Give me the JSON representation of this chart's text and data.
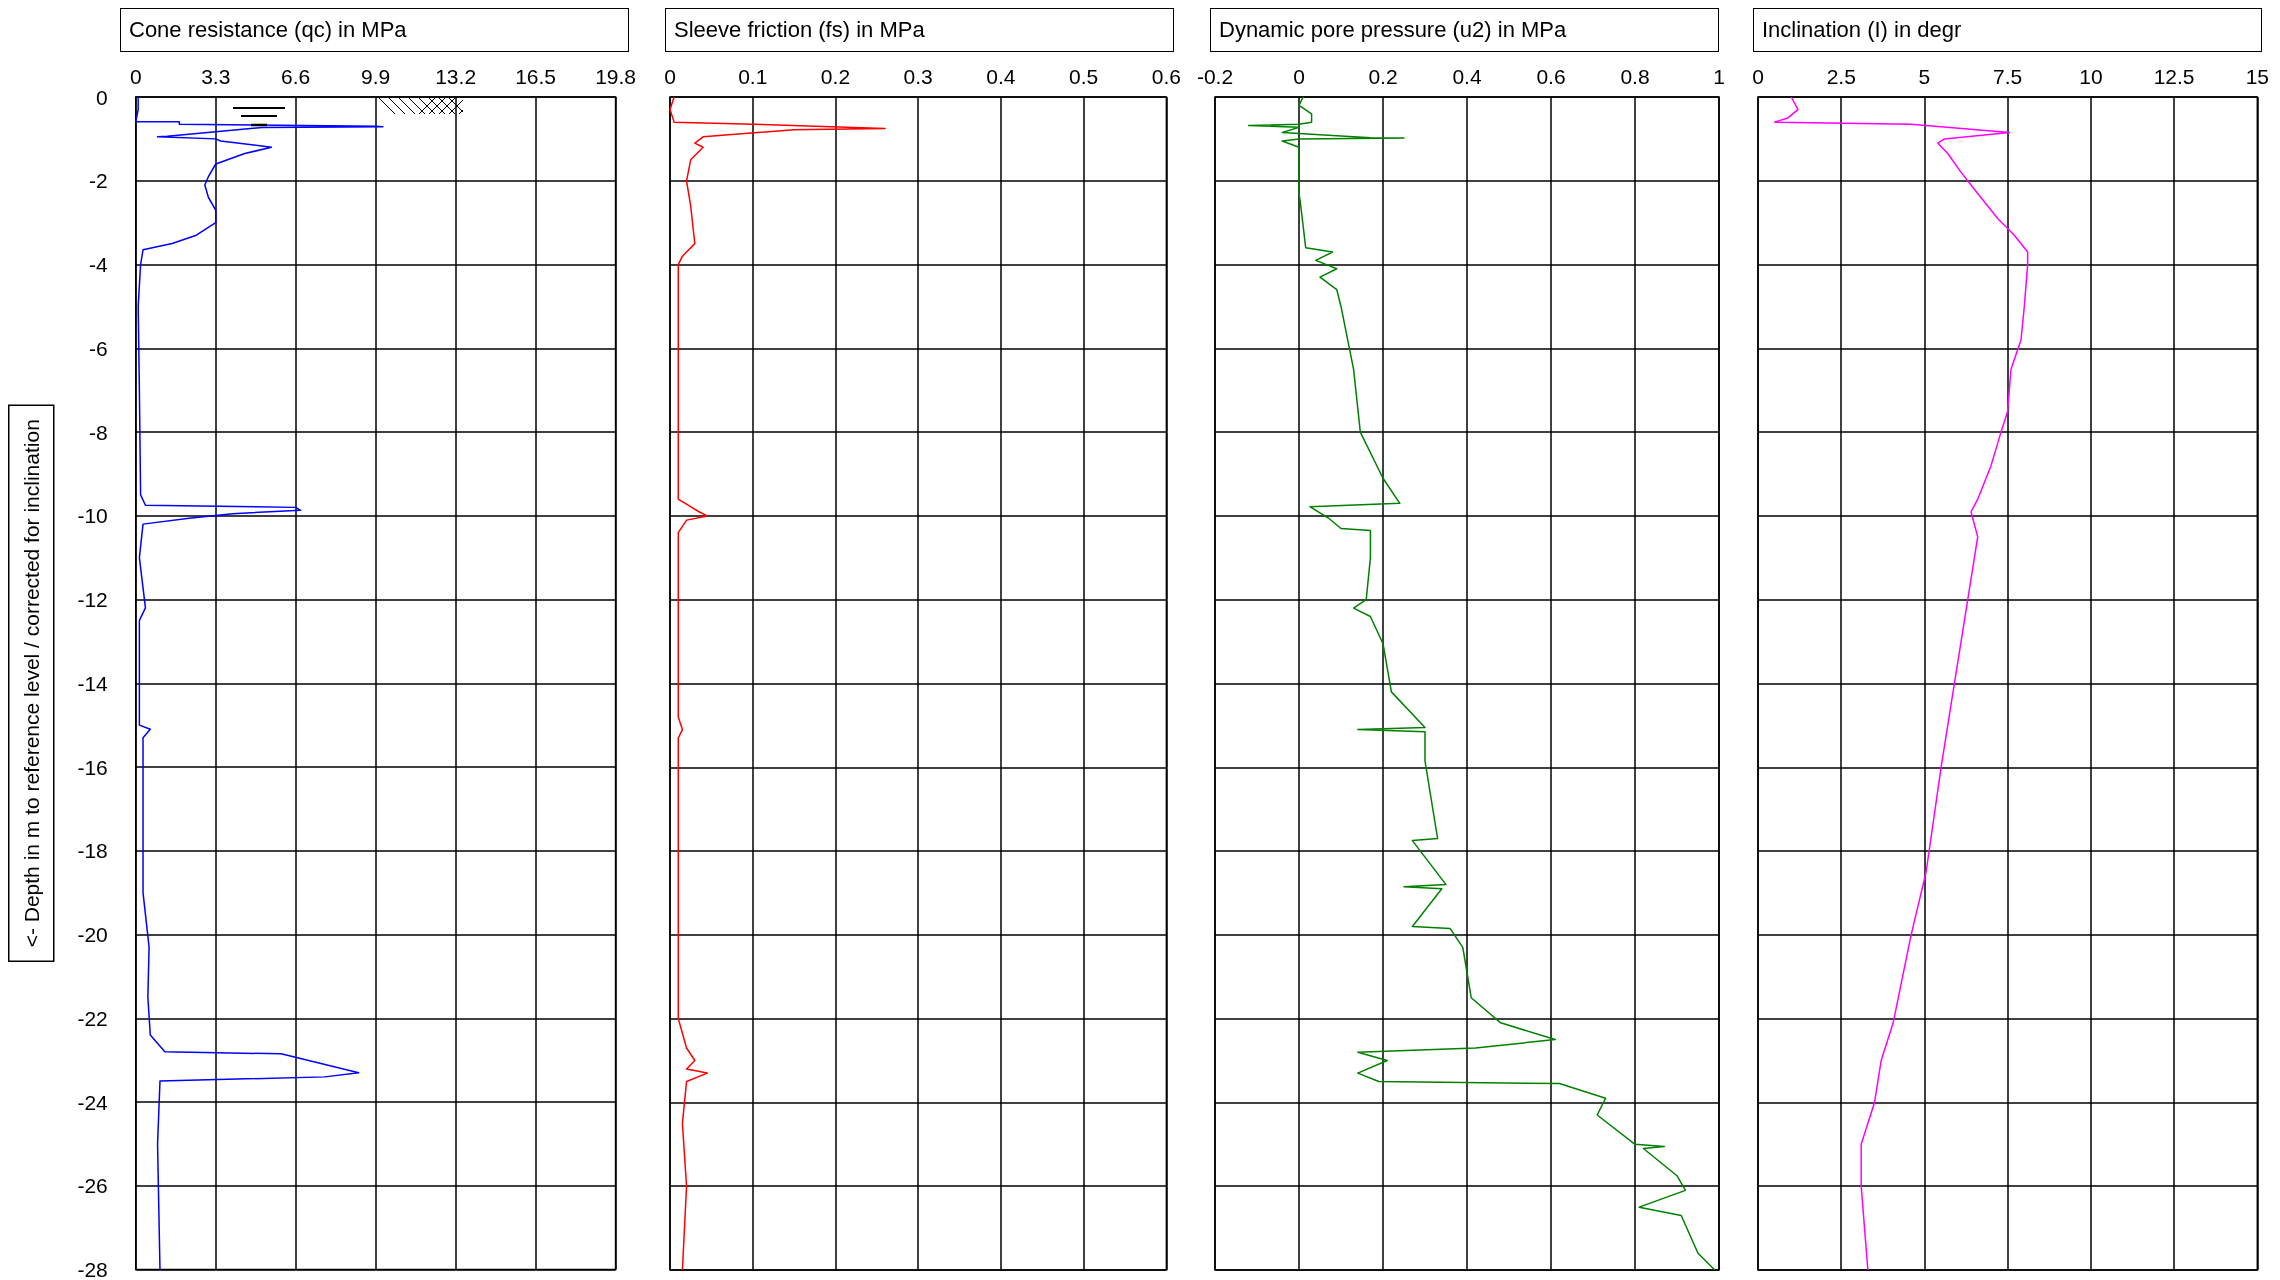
{
  "chart_data": [
    {
      "type": "line",
      "title": "Cone resistance (qc) in MPa",
      "ylabel": "<- Depth in m to reference level / corrected for inclination",
      "xlim": [
        0,
        19.8
      ],
      "xticks": [
        0,
        3.3,
        6.6,
        9.9,
        13.2,
        16.5,
        19.8
      ],
      "ylim": [
        -28,
        0
      ],
      "yticks": [
        0,
        -2,
        -4,
        -6,
        -8,
        -10,
        -12,
        -14,
        -16,
        -18,
        -20,
        -22,
        -24,
        -26,
        -28
      ],
      "grid": true,
      "marker": "none",
      "series": [
        {
          "color": "#0000ff",
          "x": [
            0.1,
            0.1,
            0,
            1.8,
            1.8,
            9.9,
            10.2,
            5.2,
            1.3,
            0.9,
            3.3,
            3.5,
            5.6,
            4.5,
            3.3,
            3.0,
            2.85,
            3.0,
            3.3,
            3.3,
            2.5,
            1.5,
            0.3,
            0.2,
            0.1,
            0.15,
            0.2,
            0.4,
            6.6,
            6.8,
            4.0,
            2.2,
            0.3,
            0.15,
            0.4,
            0.15,
            0.15,
            0.6,
            0.3,
            0.3,
            0.55,
            0.5,
            0.6,
            1.2,
            6.0,
            9.2,
            7.8,
            1.0,
            0.9,
            1.0
          ],
          "values": [
            0,
            -0.3,
            -0.59,
            -0.59,
            -0.65,
            -0.7,
            -0.71,
            -0.73,
            -0.94,
            -0.95,
            -1.0,
            -1.05,
            -1.2,
            -1.35,
            -1.6,
            -1.9,
            -2.1,
            -2.4,
            -2.7,
            -3.0,
            -3.3,
            -3.5,
            -3.65,
            -4.0,
            -5.0,
            -7.0,
            -9.5,
            -9.75,
            -9.8,
            -9.87,
            -9.95,
            -10.06,
            -10.2,
            -11.0,
            -12.2,
            -12.5,
            -15.0,
            -15.1,
            -15.3,
            -19.0,
            -20.3,
            -21.5,
            -22.4,
            -22.8,
            -22.85,
            -23.3,
            -23.4,
            -23.5,
            -25.0,
            -28.0
          ]
        }
      ]
    },
    {
      "type": "line",
      "title": "Sleeve friction (fs) in MPa",
      "xlim": [
        0,
        0.6
      ],
      "xticks": [
        0,
        0.1,
        0.2,
        0.3,
        0.4,
        0.5,
        0.6
      ],
      "ylim": [
        -28,
        0
      ],
      "yticks": [
        0,
        -2,
        -4,
        -6,
        -8,
        -10,
        -12,
        -14,
        -16,
        -18,
        -20,
        -22,
        -24,
        -26,
        -28
      ],
      "grid": true,
      "tick_labels": "x",
      "marker": "none",
      "series": [
        {
          "color": "#ff0000",
          "x": [
            0.005,
            0.0,
            0.005,
            0.1,
            0.26,
            0.15,
            0.04,
            0.03,
            0.04,
            0.025,
            0.02,
            0.025,
            0.03,
            0.015,
            0.01,
            0.01,
            0.035,
            0.045,
            0.02,
            0.01,
            0.01,
            0.015,
            0.01,
            0.01,
            0.02,
            0.03,
            0.02,
            0.045,
            0.02,
            0.015,
            0.02,
            0.015
          ],
          "values": [
            0,
            -0.3,
            -0.6,
            -0.65,
            -0.75,
            -0.78,
            -0.95,
            -1.1,
            -1.2,
            -1.5,
            -2.0,
            -2.6,
            -3.5,
            -3.8,
            -4.0,
            -9.6,
            -9.9,
            -10.0,
            -10.1,
            -10.4,
            -14.8,
            -15.1,
            -15.3,
            -22.0,
            -22.7,
            -23.0,
            -23.2,
            -23.3,
            -23.5,
            -24.5,
            -26.0,
            -28.0
          ]
        }
      ]
    },
    {
      "type": "line",
      "title": "Dynamic pore pressure (u2) in MPa",
      "xlim": [
        -0.2,
        1
      ],
      "xticks": [
        -0.2,
        0,
        0.2,
        0.4,
        0.6,
        0.8,
        1
      ],
      "ylim": [
        -28,
        0
      ],
      "yticks": [
        0,
        -2,
        -4,
        -6,
        -8,
        -10,
        -12,
        -14,
        -16,
        -18,
        -20,
        -22,
        -24,
        -26,
        -28
      ],
      "grid": true,
      "tick_labels": "x",
      "marker": "none",
      "series": [
        {
          "color": "#008000",
          "x": [
            0.01,
            0.0,
            0.03,
            0.03,
            0.0,
            -0.12,
            0.0,
            -0.04,
            0.17,
            0.25,
            0.0,
            -0.04,
            0.0,
            0.0,
            0.003,
            0.016,
            0.08,
            0.04,
            0.09,
            0.05,
            0.09,
            0.1,
            0.11,
            0.12,
            0.13,
            0.146,
            0.2,
            0.24,
            0.026,
            0.07,
            0.1,
            0.17,
            0.17,
            0.16,
            0.13,
            0.17,
            0.2,
            0.22,
            0.3,
            0.14,
            0.3,
            0.3,
            0.33,
            0.27,
            0.35,
            0.25,
            0.34,
            0.27,
            0.36,
            0.39,
            0.41,
            0.48,
            0.61,
            0.42,
            0.14,
            0.21,
            0.14,
            0.19,
            0.62,
            0.73,
            0.71,
            0.8,
            0.87,
            0.82,
            0.9,
            0.92,
            0.81,
            0.91,
            0.95,
            0.99
          ],
          "values": [
            0,
            -0.2,
            -0.4,
            -0.6,
            -0.65,
            -0.68,
            -0.72,
            -0.85,
            -0.97,
            -0.98,
            -1.0,
            -1.05,
            -1.2,
            -2.3,
            -2.5,
            -3.6,
            -3.7,
            -3.9,
            -4.1,
            -4.3,
            -4.6,
            -5.0,
            -5.5,
            -6.0,
            -6.5,
            -8.0,
            -9.1,
            -9.7,
            -9.78,
            -10.05,
            -10.3,
            -10.35,
            -11.0,
            -12.0,
            -12.2,
            -12.4,
            -13.05,
            -14.2,
            -15.05,
            -15.1,
            -15.15,
            -15.85,
            -17.7,
            -17.75,
            -18.8,
            -18.85,
            -18.9,
            -19.8,
            -19.85,
            -20.3,
            -21.5,
            -22.1,
            -22.5,
            -22.7,
            -22.8,
            -23.0,
            -23.3,
            -23.5,
            -23.55,
            -23.9,
            -24.3,
            -25.0,
            -25.05,
            -25.1,
            -25.75,
            -26.1,
            -26.5,
            -26.7,
            -27.6,
            -28.0
          ]
        }
      ]
    },
    {
      "type": "line",
      "title": "Inclination (I) in degr",
      "xlim": [
        0,
        15
      ],
      "xticks": [
        0,
        2.5,
        5,
        7.5,
        10,
        12.5,
        15
      ],
      "ylim": [
        -28,
        0
      ],
      "yticks": [
        0,
        -2,
        -4,
        -6,
        -8,
        -10,
        -12,
        -14,
        -16,
        -18,
        -20,
        -22,
        -24,
        -26,
        -28
      ],
      "grid": true,
      "tick_labels": "x",
      "marker": "none",
      "series": [
        {
          "color": "#ff00ff",
          "x": [
            1.0,
            1.2,
            0.9,
            0.5,
            4.6,
            7.55,
            5.6,
            5.4,
            5.7,
            6.1,
            6.5,
            7.2,
            7.7,
            8.1,
            8.1,
            8.0,
            7.9,
            7.6,
            7.5,
            7.3,
            7.0,
            6.6,
            6.4,
            6.6,
            6.4,
            6.1,
            5.8,
            5.5,
            5.05,
            4.6,
            4.06,
            3.7,
            3.5,
            3.1,
            3.1,
            3.2,
            3.3
          ],
          "values": [
            0,
            -0.3,
            -0.5,
            -0.6,
            -0.65,
            -0.85,
            -1.0,
            -1.1,
            -1.35,
            -1.8,
            -2.2,
            -2.9,
            -3.3,
            -3.7,
            -4.0,
            -5.0,
            -5.8,
            -6.5,
            -7.5,
            -8.0,
            -8.8,
            -9.6,
            -9.9,
            -10.5,
            -11.5,
            -13.0,
            -14.5,
            -16.0,
            -18.5,
            -20.0,
            -22.1,
            -23.0,
            -24.0,
            -25.0,
            -26.0,
            -27.0,
            -28.0
          ]
        }
      ]
    }
  ]
}
